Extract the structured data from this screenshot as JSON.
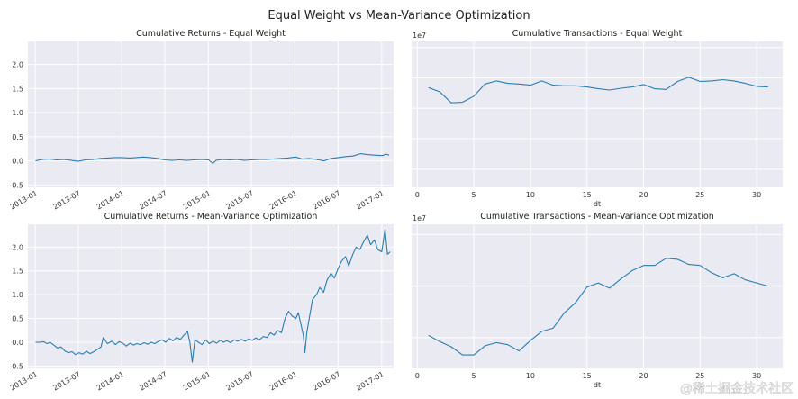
{
  "figure": {
    "suptitle": "Equal Weight vs Mean-Variance Optimization",
    "watermark": "@稀土掘金技术社区"
  },
  "colors": {
    "background": "#eaeaf2",
    "grid": "#ffffff",
    "line": "#2a7db0"
  },
  "chart_data": [
    {
      "id": "p1",
      "type": "line",
      "title": "Cumulative Returns - Equal Weight",
      "xlabel": "",
      "x_type": "date",
      "xlim": [
        "2012-12-01",
        "2017-02-20"
      ],
      "ylim": [
        -0.55,
        2.48
      ],
      "x_ticks": [
        "2013-01",
        "2013-07",
        "2014-01",
        "2014-07",
        "2015-01",
        "2015-07",
        "2016-01",
        "2016-07",
        "2017-01"
      ],
      "x_ticks_rotated": true,
      "y_ticks": [
        -0.5,
        0.0,
        0.5,
        1.0,
        1.5,
        2.0
      ],
      "y_tick_labels": [
        "-0.5",
        "0.0",
        "0.5",
        "1.0",
        "1.5",
        "2.0"
      ],
      "grid": true,
      "series": [
        {
          "values": [
            [
              "2013-01-02",
              0.0
            ],
            [
              "2013-02-01",
              0.03
            ],
            [
              "2013-03-01",
              0.04
            ],
            [
              "2013-04-01",
              0.02
            ],
            [
              "2013-05-01",
              0.03
            ],
            [
              "2013-06-03",
              0.01
            ],
            [
              "2013-07-01",
              -0.01
            ],
            [
              "2013-08-01",
              0.02
            ],
            [
              "2013-09-03",
              0.03
            ],
            [
              "2013-10-01",
              0.05
            ],
            [
              "2013-11-01",
              0.06
            ],
            [
              "2013-12-02",
              0.07
            ],
            [
              "2014-01-02",
              0.07
            ],
            [
              "2014-02-03",
              0.06
            ],
            [
              "2014-03-03",
              0.07
            ],
            [
              "2014-04-01",
              0.08
            ],
            [
              "2014-05-01",
              0.07
            ],
            [
              "2014-06-02",
              0.05
            ],
            [
              "2014-07-01",
              0.02
            ],
            [
              "2014-08-01",
              0.01
            ],
            [
              "2014-09-02",
              0.02
            ],
            [
              "2014-10-01",
              0.01
            ],
            [
              "2014-11-03",
              0.02
            ],
            [
              "2014-12-01",
              0.03
            ],
            [
              "2015-01-02",
              0.02
            ],
            [
              "2015-01-20",
              -0.05
            ],
            [
              "2015-02-02",
              0.01
            ],
            [
              "2015-03-02",
              0.03
            ],
            [
              "2015-04-01",
              0.02
            ],
            [
              "2015-05-01",
              0.03
            ],
            [
              "2015-06-01",
              0.01
            ],
            [
              "2015-07-01",
              0.02
            ],
            [
              "2015-08-03",
              0.03
            ],
            [
              "2015-09-01",
              0.03
            ],
            [
              "2015-10-01",
              0.04
            ],
            [
              "2015-11-02",
              0.05
            ],
            [
              "2015-12-01",
              0.06
            ],
            [
              "2016-01-04",
              0.08
            ],
            [
              "2016-02-01",
              0.04
            ],
            [
              "2016-03-01",
              0.05
            ],
            [
              "2016-04-01",
              0.03
            ],
            [
              "2016-05-02",
              0.0
            ],
            [
              "2016-06-01",
              0.05
            ],
            [
              "2016-07-01",
              0.07
            ],
            [
              "2016-08-01",
              0.09
            ],
            [
              "2016-09-01",
              0.1
            ],
            [
              "2016-10-03",
              0.15
            ],
            [
              "2016-11-01",
              0.13
            ],
            [
              "2016-12-01",
              0.12
            ],
            [
              "2017-01-03",
              0.11
            ],
            [
              "2017-01-20",
              0.14
            ],
            [
              "2017-02-01",
              0.12
            ]
          ]
        }
      ]
    },
    {
      "id": "p2",
      "type": "line",
      "title": "Cumulative Transactions - Equal Weight",
      "xlabel": "dt",
      "x_type": "number",
      "xlim": [
        -0.5,
        32.3
      ],
      "ylim": [
        0.2,
        2.6
      ],
      "x_ticks": [
        0,
        5,
        10,
        15,
        20,
        25,
        30
      ],
      "y_ticks": [
        0.5,
        1.0,
        1.5,
        2.0,
        2.5
      ],
      "y_tick_labels": [
        "",
        "",
        "",
        "",
        ""
      ],
      "y_offset_label": "1e7",
      "grid": true,
      "series": [
        {
          "values": [
            [
              1,
              1.84
            ],
            [
              2,
              1.77
            ],
            [
              3,
              1.59
            ],
            [
              4,
              1.6
            ],
            [
              5,
              1.7
            ],
            [
              6,
              1.9
            ],
            [
              7,
              1.95
            ],
            [
              8,
              1.91
            ],
            [
              9,
              1.9
            ],
            [
              10,
              1.88
            ],
            [
              11,
              1.95
            ],
            [
              12,
              1.88
            ],
            [
              13,
              1.87
            ],
            [
              14,
              1.87
            ],
            [
              15,
              1.85
            ],
            [
              16,
              1.82
            ],
            [
              17,
              1.8
            ],
            [
              18,
              1.83
            ],
            [
              19,
              1.85
            ],
            [
              20,
              1.89
            ],
            [
              21,
              1.82
            ],
            [
              22,
              1.81
            ],
            [
              23,
              1.94
            ],
            [
              24,
              2.01
            ],
            [
              25,
              1.94
            ],
            [
              26,
              1.95
            ],
            [
              27,
              1.97
            ],
            [
              28,
              1.95
            ],
            [
              29,
              1.91
            ],
            [
              30,
              1.86
            ],
            [
              31,
              1.85
            ]
          ]
        }
      ]
    },
    {
      "id": "p3",
      "type": "line",
      "title": "Cumulative Returns - Mean-Variance Optimization",
      "xlabel": "",
      "x_type": "date",
      "xlim": [
        "2012-12-01",
        "2017-02-20"
      ],
      "ylim": [
        -0.55,
        2.48
      ],
      "x_ticks": [
        "2013-01",
        "2013-07",
        "2014-01",
        "2014-07",
        "2015-01",
        "2015-07",
        "2016-01",
        "2016-07",
        "2017-01"
      ],
      "x_ticks_rotated": true,
      "y_ticks": [
        -0.5,
        0.0,
        0.5,
        1.0,
        1.5,
        2.0
      ],
      "y_tick_labels": [
        "-0.5",
        "0.0",
        "0.5",
        "1.0",
        "1.5",
        "2.0"
      ],
      "grid": true,
      "series": [
        {
          "values": [
            [
              "2013-01-02",
              0.0
            ],
            [
              "2013-01-20",
              0.0
            ],
            [
              "2013-02-05",
              0.01
            ],
            [
              "2013-02-20",
              -0.03
            ],
            [
              "2013-03-05",
              0.0
            ],
            [
              "2013-03-20",
              -0.06
            ],
            [
              "2013-04-05",
              -0.12
            ],
            [
              "2013-04-20",
              -0.1
            ],
            [
              "2013-05-05",
              -0.18
            ],
            [
              "2013-05-20",
              -0.22
            ],
            [
              "2013-06-05",
              -0.2
            ],
            [
              "2013-06-20",
              -0.26
            ],
            [
              "2013-07-05",
              -0.22
            ],
            [
              "2013-07-20",
              -0.25
            ],
            [
              "2013-08-05",
              -0.19
            ],
            [
              "2013-08-20",
              -0.24
            ],
            [
              "2013-09-05",
              -0.2
            ],
            [
              "2013-09-20",
              -0.15
            ],
            [
              "2013-10-05",
              -0.1
            ],
            [
              "2013-10-15",
              0.1
            ],
            [
              "2013-11-01",
              -0.03
            ],
            [
              "2013-11-20",
              0.02
            ],
            [
              "2013-12-05",
              -0.05
            ],
            [
              "2013-12-20",
              0.01
            ],
            [
              "2014-01-05",
              -0.02
            ],
            [
              "2014-01-20",
              -0.08
            ],
            [
              "2014-02-05",
              -0.02
            ],
            [
              "2014-02-20",
              -0.06
            ],
            [
              "2014-03-05",
              -0.03
            ],
            [
              "2014-03-20",
              -0.05
            ],
            [
              "2014-04-05",
              -0.01
            ],
            [
              "2014-04-20",
              -0.04
            ],
            [
              "2014-05-05",
              0.0
            ],
            [
              "2014-05-20",
              -0.03
            ],
            [
              "2014-06-05",
              0.02
            ],
            [
              "2014-06-20",
              0.05
            ],
            [
              "2014-07-05",
              0.0
            ],
            [
              "2014-07-20",
              0.08
            ],
            [
              "2014-08-05",
              0.03
            ],
            [
              "2014-08-20",
              0.1
            ],
            [
              "2014-09-05",
              0.06
            ],
            [
              "2014-09-20",
              0.15
            ],
            [
              "2014-10-05",
              0.22
            ],
            [
              "2014-10-15",
              0.0
            ],
            [
              "2014-10-25",
              -0.42
            ],
            [
              "2014-11-05",
              0.05
            ],
            [
              "2014-11-20",
              0.0
            ],
            [
              "2014-12-05",
              -0.05
            ],
            [
              "2014-12-20",
              0.05
            ],
            [
              "2015-01-05",
              -0.03
            ],
            [
              "2015-01-20",
              0.02
            ],
            [
              "2015-02-05",
              -0.02
            ],
            [
              "2015-02-20",
              0.04
            ],
            [
              "2015-03-05",
              0.0
            ],
            [
              "2015-03-20",
              0.03
            ],
            [
              "2015-04-05",
              -0.01
            ],
            [
              "2015-04-20",
              0.05
            ],
            [
              "2015-05-05",
              0.02
            ],
            [
              "2015-05-20",
              0.06
            ],
            [
              "2015-06-05",
              0.02
            ],
            [
              "2015-06-20",
              0.07
            ],
            [
              "2015-07-05",
              0.04
            ],
            [
              "2015-07-20",
              0.09
            ],
            [
              "2015-08-05",
              0.05
            ],
            [
              "2015-08-20",
              0.12
            ],
            [
              "2015-09-05",
              0.1
            ],
            [
              "2015-09-20",
              0.2
            ],
            [
              "2015-10-05",
              0.15
            ],
            [
              "2015-10-20",
              0.25
            ],
            [
              "2015-11-05",
              0.2
            ],
            [
              "2015-11-20",
              0.5
            ],
            [
              "2015-12-05",
              0.65
            ],
            [
              "2015-12-20",
              0.55
            ],
            [
              "2016-01-05",
              0.5
            ],
            [
              "2016-01-15",
              0.62
            ],
            [
              "2016-01-25",
              0.4
            ],
            [
              "2016-02-05",
              0.15
            ],
            [
              "2016-02-12",
              -0.22
            ],
            [
              "2016-02-20",
              0.2
            ],
            [
              "2016-03-01",
              0.5
            ],
            [
              "2016-03-15",
              0.9
            ],
            [
              "2016-04-01",
              1.0
            ],
            [
              "2016-04-15",
              1.15
            ],
            [
              "2016-05-01",
              1.05
            ],
            [
              "2016-05-15",
              1.3
            ],
            [
              "2016-06-01",
              1.45
            ],
            [
              "2016-06-15",
              1.35
            ],
            [
              "2016-07-01",
              1.55
            ],
            [
              "2016-07-15",
              1.7
            ],
            [
              "2016-08-01",
              1.8
            ],
            [
              "2016-08-15",
              1.6
            ],
            [
              "2016-09-01",
              1.85
            ],
            [
              "2016-09-15",
              2.0
            ],
            [
              "2016-10-01",
              1.95
            ],
            [
              "2016-10-15",
              2.1
            ],
            [
              "2016-11-01",
              2.25
            ],
            [
              "2016-11-15",
              2.05
            ],
            [
              "2016-12-01",
              2.15
            ],
            [
              "2016-12-15",
              1.95
            ],
            [
              "2017-01-01",
              1.9
            ],
            [
              "2017-01-15",
              2.37
            ],
            [
              "2017-01-25",
              1.85
            ],
            [
              "2017-02-05",
              1.9
            ]
          ]
        }
      ]
    },
    {
      "id": "p4",
      "type": "line",
      "title": "Cumulative Transactions - Mean-Variance Optimization",
      "xlabel": "dt",
      "x_type": "number",
      "xlim": [
        -0.5,
        32.3
      ],
      "ylim": [
        0.2,
        1.6
      ],
      "x_ticks": [
        0,
        5,
        10,
        15,
        20,
        25,
        30
      ],
      "y_ticks": [
        0.5,
        1.0,
        1.5
      ],
      "y_tick_labels": [
        "",
        "",
        ""
      ],
      "y_offset_label": "1e7",
      "grid": true,
      "series": [
        {
          "values": [
            [
              1,
              0.52
            ],
            [
              2,
              0.46
            ],
            [
              3,
              0.41
            ],
            [
              4,
              0.33
            ],
            [
              5,
              0.33
            ],
            [
              6,
              0.42
            ],
            [
              7,
              0.45
            ],
            [
              8,
              0.43
            ],
            [
              9,
              0.37
            ],
            [
              10,
              0.47
            ],
            [
              11,
              0.56
            ],
            [
              12,
              0.59
            ],
            [
              13,
              0.74
            ],
            [
              14,
              0.84
            ],
            [
              15,
              0.99
            ],
            [
              16,
              1.03
            ],
            [
              17,
              0.98
            ],
            [
              18,
              1.07
            ],
            [
              19,
              1.15
            ],
            [
              20,
              1.2
            ],
            [
              21,
              1.2
            ],
            [
              22,
              1.27
            ],
            [
              23,
              1.26
            ],
            [
              24,
              1.21
            ],
            [
              25,
              1.2
            ],
            [
              26,
              1.13
            ],
            [
              27,
              1.08
            ],
            [
              28,
              1.12
            ],
            [
              29,
              1.06
            ],
            [
              30,
              1.03
            ],
            [
              31,
              1.0
            ]
          ]
        }
      ]
    }
  ]
}
